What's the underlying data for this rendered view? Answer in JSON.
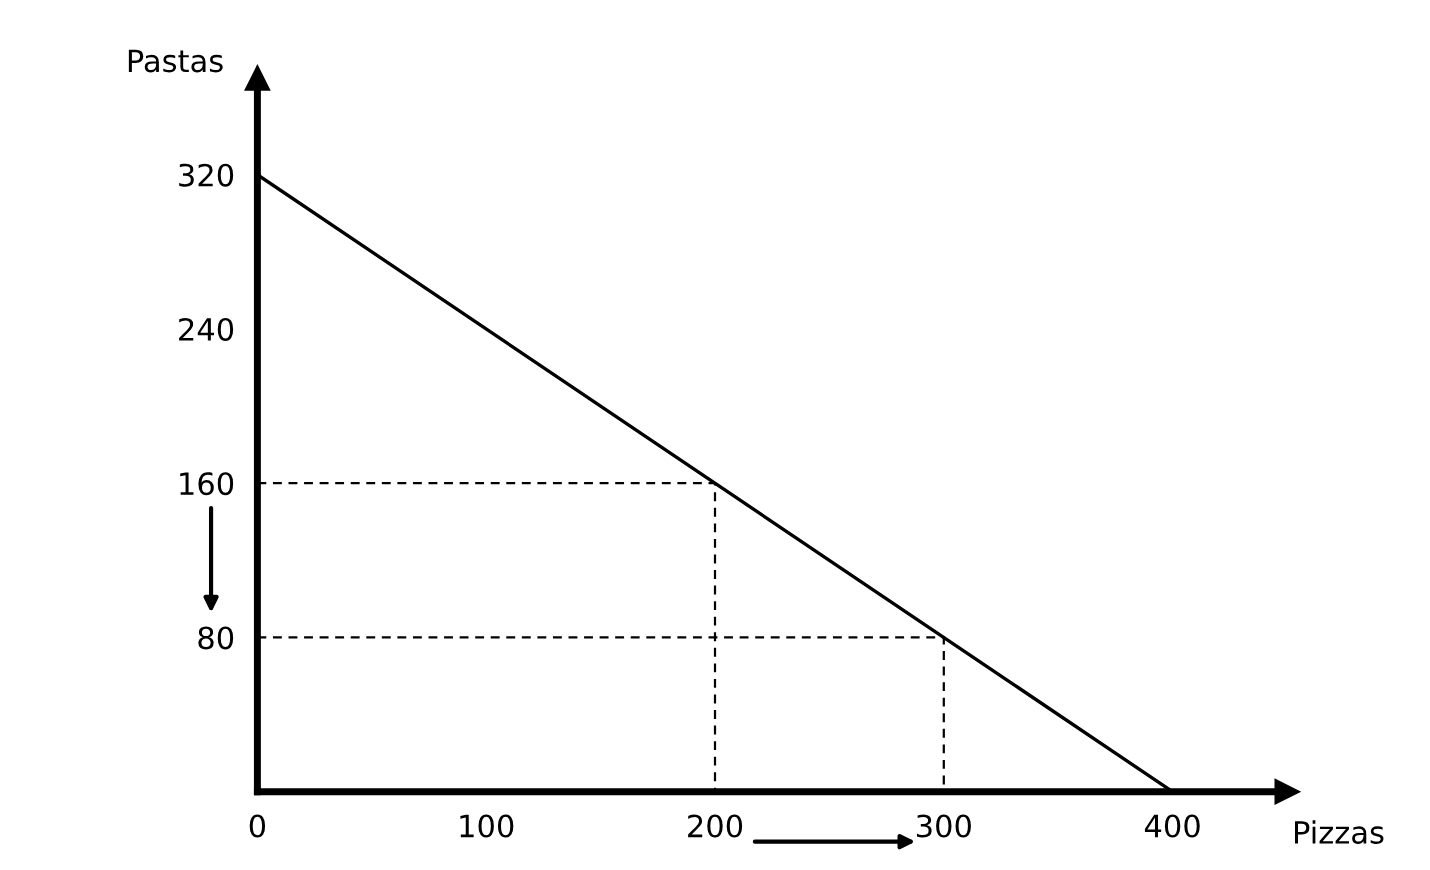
{
  "chart_data": {
    "type": "line",
    "xlabel": "Pizzas",
    "ylabel": "Pastas",
    "xlim": [
      0,
      450
    ],
    "ylim": [
      0,
      370
    ],
    "xticks": [
      0,
      100,
      200,
      300,
      400
    ],
    "yticks": [
      80,
      160,
      240,
      320
    ],
    "grid": false,
    "legend": false,
    "marker": "none",
    "series": [
      {
        "color": "#000000",
        "x": [
          0,
          400
        ],
        "values": [
          320,
          0
        ],
        "line_style": "solid"
      },
      {
        "color": "#000000",
        "x": [
          0,
          200,
          200
        ],
        "values": [
          160,
          160,
          0
        ],
        "line_style": "dashed"
      },
      {
        "color": "#000000",
        "x": [
          0,
          300,
          300
        ],
        "values": [
          80,
          80,
          0
        ],
        "line_style": "dashed"
      }
    ]
  }
}
